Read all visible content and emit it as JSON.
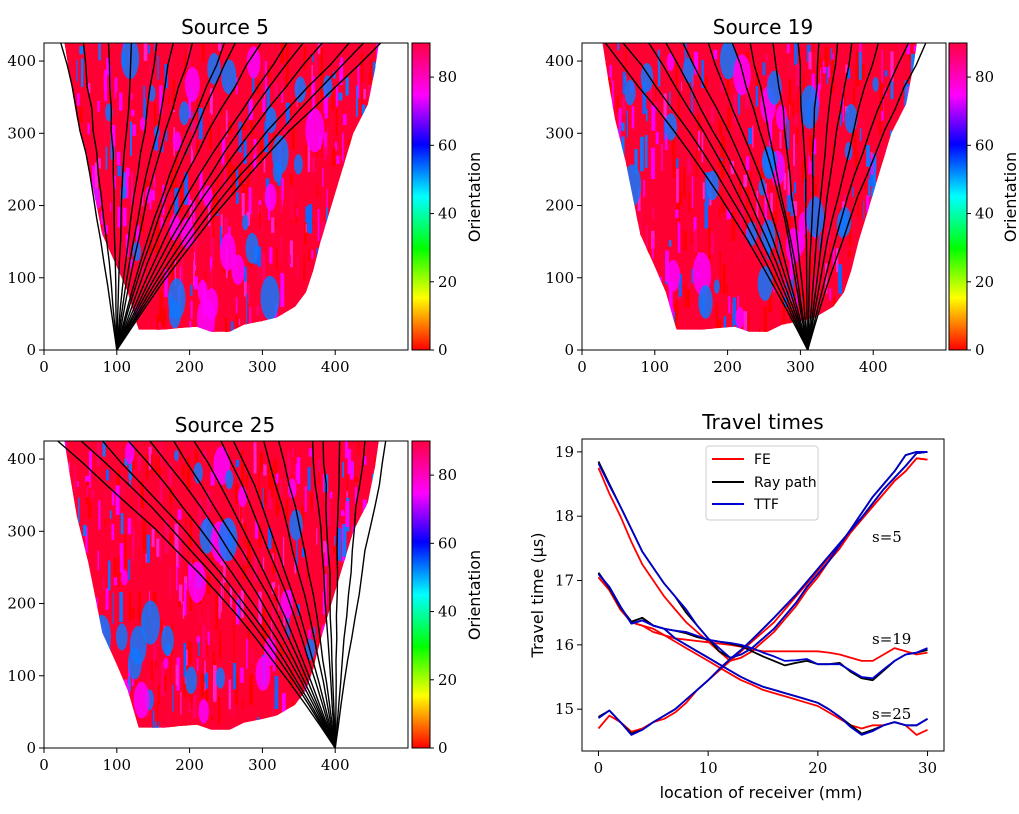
{
  "chart_data": [
    {
      "type": "heatmap",
      "title": "Source 5",
      "x_ticks": [
        "0",
        "100",
        "200",
        "300",
        "400"
      ],
      "y_ticks": [
        "0",
        "100",
        "200",
        "300",
        "400"
      ],
      "xlim": [
        0,
        500
      ],
      "ylim": [
        0,
        425
      ],
      "source_position": [
        100,
        0
      ],
      "colorbar": {
        "label": "Orientation",
        "ticks": [
          "0",
          "20",
          "40",
          "60",
          "80"
        ],
        "range": [
          0,
          90
        ]
      }
    },
    {
      "type": "heatmap",
      "title": "Source 19",
      "x_ticks": [
        "0",
        "100",
        "200",
        "300",
        "400"
      ],
      "y_ticks": [
        "0",
        "100",
        "200",
        "300",
        "400"
      ],
      "xlim": [
        0,
        500
      ],
      "ylim": [
        0,
        425
      ],
      "source_position": [
        310,
        0
      ],
      "colorbar": {
        "label": "Orientation",
        "ticks": [
          "0",
          "20",
          "40",
          "60",
          "80"
        ],
        "range": [
          0,
          90
        ]
      }
    },
    {
      "type": "heatmap",
      "title": "Source 25",
      "x_ticks": [
        "0",
        "100",
        "200",
        "300",
        "400"
      ],
      "y_ticks": [
        "0",
        "100",
        "200",
        "300",
        "400"
      ],
      "xlim": [
        0,
        500
      ],
      "ylim": [
        0,
        425
      ],
      "source_position": [
        400,
        0
      ],
      "colorbar": {
        "label": "Orientation",
        "ticks": [
          "0",
          "20",
          "40",
          "60",
          "80"
        ],
        "range": [
          0,
          90
        ]
      }
    },
    {
      "type": "line",
      "title": "Travel times",
      "xlabel": "location of receiver (mm)",
      "ylabel": "Travel time (μs)",
      "x_ticks": [
        "0",
        "10",
        "20",
        "30"
      ],
      "y_ticks": [
        "15",
        "16",
        "17",
        "18",
        "19"
      ],
      "xlim": [
        -1.5,
        31.5
      ],
      "ylim": [
        14.35,
        19.2
      ],
      "x": [
        0,
        1,
        2,
        3,
        4,
        5,
        6,
        7,
        8,
        9,
        10,
        11,
        12,
        13,
        14,
        15,
        16,
        17,
        18,
        19,
        20,
        21,
        22,
        23,
        24,
        25,
        26,
        27,
        28,
        29,
        30
      ],
      "legend": [
        {
          "name": "FE",
          "color": "#ff0000"
        },
        {
          "name": "Ray path",
          "color": "#000000"
        },
        {
          "name": "TTF",
          "color": "#0000cc"
        }
      ],
      "annotations": [
        "s=5",
        "s=19",
        "s=25"
      ],
      "series": [
        {
          "name": "FE s=5",
          "color": "#ff0000",
          "values": [
            18.75,
            18.35,
            18.0,
            17.6,
            17.25,
            17.0,
            16.75,
            16.55,
            16.35,
            16.2,
            16.05,
            15.9,
            15.75,
            15.8,
            15.9,
            16.05,
            16.2,
            16.4,
            16.6,
            16.85,
            17.05,
            17.3,
            17.5,
            17.75,
            17.95,
            18.15,
            18.35,
            18.55,
            18.7,
            18.9,
            18.88
          ]
        },
        {
          "name": "Ray path s=5",
          "color": "#000000",
          "values": [
            18.85,
            18.5,
            18.15,
            17.8,
            17.45,
            17.2,
            16.95,
            16.75,
            16.5,
            16.3,
            16.1,
            15.9,
            15.8,
            15.85,
            15.95,
            16.1,
            16.25,
            16.45,
            16.65,
            16.9,
            17.1,
            17.3,
            17.55,
            17.8,
            18.05,
            18.3,
            18.5,
            18.7,
            18.95,
            19.0,
            19.0
          ]
        },
        {
          "name": "TTF s=5",
          "color": "#0000cc",
          "values": [
            18.82,
            18.48,
            18.15,
            17.8,
            17.45,
            17.2,
            16.95,
            16.75,
            16.55,
            16.3,
            16.1,
            15.95,
            15.8,
            15.85,
            15.95,
            16.1,
            16.25,
            16.45,
            16.65,
            16.9,
            17.1,
            17.3,
            17.55,
            17.8,
            18.05,
            18.3,
            18.5,
            18.7,
            18.95,
            19.0,
            19.0
          ]
        },
        {
          "name": "FE s=19",
          "color": "#ff0000",
          "values": [
            17.05,
            16.85,
            16.55,
            16.35,
            16.3,
            16.2,
            16.15,
            16.1,
            16.08,
            16.06,
            16.04,
            16.02,
            16.0,
            15.97,
            15.93,
            15.9,
            15.9,
            15.9,
            15.9,
            15.9,
            15.9,
            15.88,
            15.85,
            15.8,
            15.75,
            15.75,
            15.85,
            15.95,
            15.9,
            15.85,
            15.88
          ]
        },
        {
          "name": "Ray path s=19",
          "color": "#000000",
          "values": [
            17.12,
            16.88,
            16.58,
            16.36,
            16.42,
            16.3,
            16.25,
            16.22,
            16.18,
            16.12,
            16.08,
            16.05,
            16.02,
            15.98,
            15.9,
            15.82,
            15.75,
            15.68,
            15.72,
            15.75,
            15.7,
            15.7,
            15.72,
            15.58,
            15.48,
            15.45,
            15.6,
            15.75,
            15.85,
            15.88,
            15.92
          ]
        },
        {
          "name": "TTF s=19",
          "color": "#0000cc",
          "values": [
            17.1,
            16.9,
            16.6,
            16.33,
            16.38,
            16.3,
            16.25,
            16.22,
            16.2,
            16.14,
            16.08,
            16.05,
            16.03,
            16.0,
            15.95,
            15.88,
            15.82,
            15.75,
            15.76,
            15.78,
            15.7,
            15.7,
            15.7,
            15.6,
            15.5,
            15.48,
            15.62,
            15.75,
            15.85,
            15.88,
            15.95
          ]
        },
        {
          "name": "FE s=25",
          "color": "#ff0000",
          "values": [
            14.7,
            14.9,
            14.8,
            14.65,
            14.7,
            14.8,
            14.85,
            14.95,
            15.1,
            15.3,
            15.45,
            15.6,
            15.75,
            15.9,
            16.05,
            16.2,
            16.35,
            16.55,
            16.75,
            16.95,
            17.15,
            17.35,
            17.55,
            17.75,
            17.95,
            18.15,
            18.35,
            18.55,
            18.7,
            18.9,
            18.88
          ]
        },
        {
          "name": "Ray path s=25",
          "color": "#000000",
          "values": [
            14.88,
            14.98,
            14.8,
            14.62,
            14.68,
            14.8,
            14.9,
            15.0,
            15.15,
            15.3,
            15.45,
            15.62,
            15.78,
            15.92,
            16.08,
            16.25,
            16.42,
            16.6,
            16.78,
            16.98,
            17.18,
            17.38,
            17.58,
            17.78,
            17.98,
            18.2,
            18.42,
            18.6,
            18.78,
            18.98,
            19.0
          ]
        },
        {
          "name": "TTF s=25",
          "color": "#0000cc",
          "values": [
            14.86,
            14.98,
            14.8,
            14.6,
            14.68,
            14.8,
            14.9,
            15.0,
            15.15,
            15.3,
            15.45,
            15.62,
            15.78,
            15.92,
            16.08,
            16.25,
            16.42,
            16.6,
            16.78,
            16.98,
            17.18,
            17.38,
            17.58,
            17.78,
            17.98,
            18.2,
            18.42,
            18.6,
            18.78,
            18.98,
            19.0
          ]
        },
        {
          "name": "FE s=25 tail",
          "color": "#ff0000",
          "values": [
            17.05,
            16.85,
            16.55,
            16.35,
            16.3,
            16.25,
            16.15,
            16.05,
            15.95,
            15.85,
            15.75,
            15.65,
            15.55,
            15.45,
            15.38,
            15.3,
            15.25,
            15.2,
            15.15,
            15.1,
            15.05,
            14.95,
            14.85,
            14.75,
            14.7,
            14.75,
            14.75,
            14.8,
            14.75,
            14.6,
            14.68
          ]
        },
        {
          "name": "Ray path s=25 tail",
          "color": "#000000",
          "values": [
            17.12,
            16.88,
            16.58,
            16.36,
            16.42,
            16.3,
            16.25,
            16.1,
            16.0,
            15.9,
            15.8,
            15.7,
            15.6,
            15.5,
            15.42,
            15.35,
            15.3,
            15.25,
            15.2,
            15.15,
            15.1,
            15.0,
            14.88,
            14.75,
            14.62,
            14.68,
            14.75,
            14.8,
            14.75,
            14.75,
            14.85
          ]
        },
        {
          "name": "TTF s=25 tail",
          "color": "#0000cc",
          "values": [
            17.1,
            16.9,
            16.6,
            16.33,
            16.38,
            16.3,
            16.25,
            16.1,
            16.0,
            15.9,
            15.8,
            15.7,
            15.6,
            15.5,
            15.42,
            15.35,
            15.3,
            15.25,
            15.2,
            15.15,
            15.1,
            15.0,
            14.88,
            14.72,
            14.6,
            14.66,
            14.75,
            14.8,
            14.75,
            14.75,
            14.85
          ]
        }
      ]
    }
  ]
}
